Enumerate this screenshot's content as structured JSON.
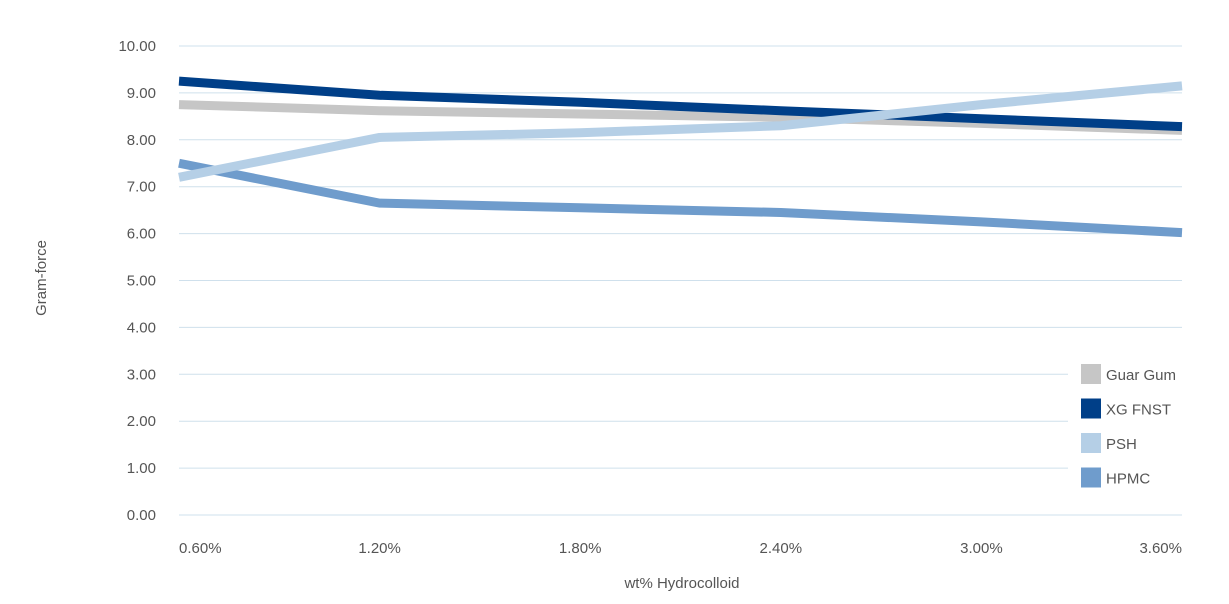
{
  "chart_data": {
    "type": "line",
    "title": "",
    "xlabel": "wt% Hydrocolloid",
    "ylabel": "Gram-force",
    "categories": [
      "0.60%",
      "1.20%",
      "1.80%",
      "2.40%",
      "3.00%",
      "3.60%"
    ],
    "ylim": [
      0,
      10
    ],
    "yticks": [
      "0.00",
      "1.00",
      "2.00",
      "3.00",
      "4.00",
      "5.00",
      "6.00",
      "7.00",
      "8.00",
      "9.00",
      "10.00"
    ],
    "grid": true,
    "legend_position": "bottom-right",
    "series": [
      {
        "name": "Guar Gum",
        "color": "#c6c6c6",
        "values": [
          8.75,
          8.62,
          8.55,
          8.48,
          8.35,
          8.2
        ]
      },
      {
        "name": "XG FNST",
        "color": "#003f88",
        "values": [
          9.25,
          8.95,
          8.8,
          8.62,
          8.45,
          8.28
        ]
      },
      {
        "name": "PSH",
        "color": "#b5cfe6",
        "values": [
          7.2,
          8.05,
          8.15,
          8.3,
          8.75,
          9.15
        ]
      },
      {
        "name": "HPMC",
        "color": "#6f9ccc",
        "values": [
          7.5,
          6.65,
          6.55,
          6.45,
          6.25,
          6.02
        ]
      }
    ]
  }
}
